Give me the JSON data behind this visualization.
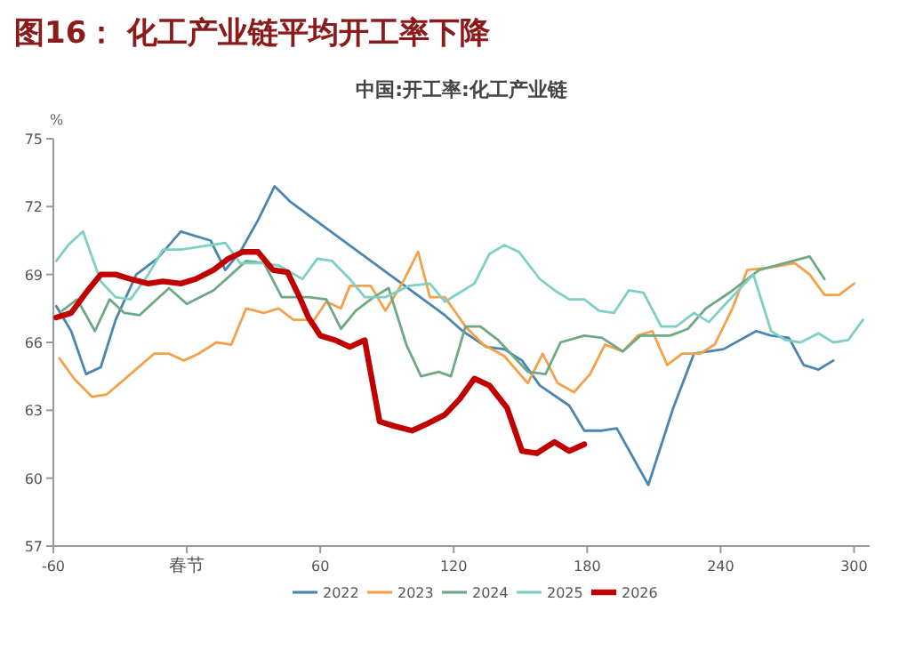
{
  "chart_data": {
    "type": "line",
    "title": "图16：  化工产业链平均开工率下降",
    "subtitle": "中国:开工率:化工产业链",
    "ylabel": "%",
    "xlim": [
      -60,
      307
    ],
    "ylim": [
      57,
      75
    ],
    "xticks": [
      -60,
      {
        "value": 0,
        "label": "春节"
      },
      60,
      120,
      180,
      240,
      300
    ],
    "yticks": [
      57,
      60,
      63,
      66,
      69,
      72,
      75
    ],
    "legend": "bottom",
    "series": [
      {
        "name": "2022",
        "color": "#4a86b0",
        "x": [
          -58.7,
          -52,
          -45.3,
          -38.7,
          -32,
          -22.7,
          -13.3,
          -2.7,
          10.7,
          17.3,
          24,
          32,
          39.5,
          46.7,
          116,
          124,
          134.7,
          142.7,
          150.7,
          158.7,
          172,
          178.7,
          186.7,
          193.3,
          207.5,
          218.7,
          228,
          241.3,
          256,
          262.7,
          270.7,
          277.3,
          284,
          290.7
        ],
        "values": [
          67.6,
          66.5,
          64.6,
          64.9,
          67.0,
          69.0,
          69.7,
          70.9,
          70.5,
          69.2,
          70.0,
          71.4,
          72.9,
          72.2,
          67.2,
          66.5,
          65.8,
          65.7,
          65.2,
          64.1,
          63.2,
          62.1,
          62.1,
          62.2,
          59.7,
          63.1,
          65.5,
          65.7,
          66.5,
          66.3,
          66.2,
          65.0,
          64.8,
          65.2
        ]
      },
      {
        "name": "2023",
        "color": "#f5a04a",
        "x": [
          -57.3,
          -50.7,
          -42.7,
          -36,
          -25.3,
          -14.7,
          -8,
          -1.3,
          5.3,
          13.3,
          20,
          26.7,
          34.7,
          41.3,
          48,
          57.3,
          62.7,
          69.3,
          73.3,
          82.7,
          89.3,
          96.8,
          104,
          109.3,
          116,
          125.3,
          133.3,
          142.7,
          153.3,
          160,
          166.7,
          174.1,
          181.3,
          188,
          196,
          202.7,
          209.3,
          216,
          222.7,
          230.7,
          237.3,
          245.3,
          252,
          261.3,
          273.3,
          280,
          286.7,
          293.3,
          300
        ],
        "values": [
          65.3,
          64.4,
          63.6,
          63.7,
          64.6,
          65.5,
          65.5,
          65.2,
          65.5,
          66.0,
          65.9,
          67.5,
          67.3,
          67.5,
          67.0,
          67.0,
          67.8,
          67.5,
          68.5,
          68.5,
          67.4,
          68.6,
          70.0,
          68.0,
          68.0,
          66.7,
          65.9,
          65.4,
          64.2,
          65.5,
          64.2,
          63.8,
          64.6,
          65.9,
          65.6,
          66.3,
          66.5,
          65.0,
          65.5,
          65.5,
          65.9,
          67.5,
          69.2,
          69.3,
          69.5,
          69.0,
          68.1,
          68.1,
          68.6
        ]
      },
      {
        "name": "2024",
        "color": "#6fa884",
        "x": [
          -56,
          -49.3,
          -41.3,
          -34.7,
          -28,
          -21.3,
          -8,
          0,
          12,
          20,
          26.7,
          34.7,
          42.7,
          54.7,
          62.7,
          69.3,
          76,
          84,
          90.7,
          98.7,
          105.3,
          113.3,
          118.7,
          125.3,
          132,
          140,
          153.3,
          161.3,
          168,
          178.7,
          186.7,
          196,
          204,
          217.3,
          225.3,
          233.3,
          244,
          257.3,
          280,
          286.7
        ],
        "values": [
          67.4,
          67.9,
          66.5,
          67.9,
          67.3,
          67.2,
          68.4,
          67.7,
          68.3,
          69.0,
          69.6,
          69.5,
          68.0,
          68.0,
          67.9,
          66.6,
          67.4,
          68.0,
          68.4,
          65.9,
          64.5,
          64.7,
          64.5,
          66.7,
          66.7,
          66.1,
          64.7,
          64.6,
          66.0,
          66.3,
          66.2,
          65.6,
          66.3,
          66.3,
          66.6,
          67.5,
          68.2,
          69.2,
          69.8,
          68.8
        ]
      },
      {
        "name": "2025",
        "color": "#7fcfc4",
        "x": [
          -58.7,
          -53.3,
          -46.7,
          -38.7,
          -32,
          -25.3,
          -17.3,
          -10.7,
          -2.7,
          10.7,
          17.3,
          24,
          33.3,
          41.3,
          52,
          58.7,
          65.3,
          73.3,
          80,
          89.3,
          100,
          109.3,
          116,
          122.7,
          129.3,
          136,
          142.7,
          149.3,
          158.7,
          165.3,
          172,
          178.7,
          185.3,
          192,
          198.7,
          205.3,
          213.3,
          220,
          228,
          234.7,
          241.3,
          254.7,
          262.7,
          269.3,
          276,
          284,
          290.7,
          297.3,
          304
        ],
        "values": [
          69.6,
          70.3,
          70.9,
          68.7,
          68.0,
          67.9,
          69.0,
          70.1,
          70.1,
          70.3,
          70.4,
          69.5,
          69.5,
          69.4,
          68.8,
          69.7,
          69.6,
          68.8,
          68.0,
          68.0,
          68.5,
          68.6,
          67.8,
          68.2,
          68.6,
          69.9,
          70.3,
          70.0,
          68.8,
          68.3,
          67.9,
          67.9,
          67.4,
          67.3,
          68.3,
          68.2,
          66.7,
          66.7,
          67.3,
          66.9,
          67.6,
          69.0,
          66.5,
          66.1,
          66.0,
          66.4,
          66.0,
          66.1,
          67.0
        ]
      },
      {
        "name": "2026",
        "color": "#c00000",
        "x": [
          -58.7,
          -52,
          -45.3,
          -38.7,
          -32,
          -25.3,
          -17.3,
          -10.7,
          -2.7,
          4,
          12,
          18.7,
          25.3,
          32,
          38.7,
          45.3,
          50.7,
          54.7,
          60,
          66.7,
          73.3,
          80,
          86.7,
          93.3,
          101.3,
          108,
          116,
          122.7,
          129.3,
          136,
          144,
          150.7,
          157.3,
          165.3,
          172,
          178.7
        ],
        "values": [
          67.1,
          67.3,
          68.2,
          69.0,
          69.0,
          68.8,
          68.6,
          68.7,
          68.6,
          68.8,
          69.2,
          69.7,
          70.0,
          70.0,
          69.2,
          69.1,
          68.0,
          67.1,
          66.3,
          66.1,
          65.8,
          66.1,
          62.5,
          62.3,
          62.1,
          62.4,
          62.8,
          63.5,
          64.4,
          64.1,
          63.1,
          61.2,
          61.1,
          61.6,
          61.2,
          61.5
        ]
      }
    ]
  }
}
